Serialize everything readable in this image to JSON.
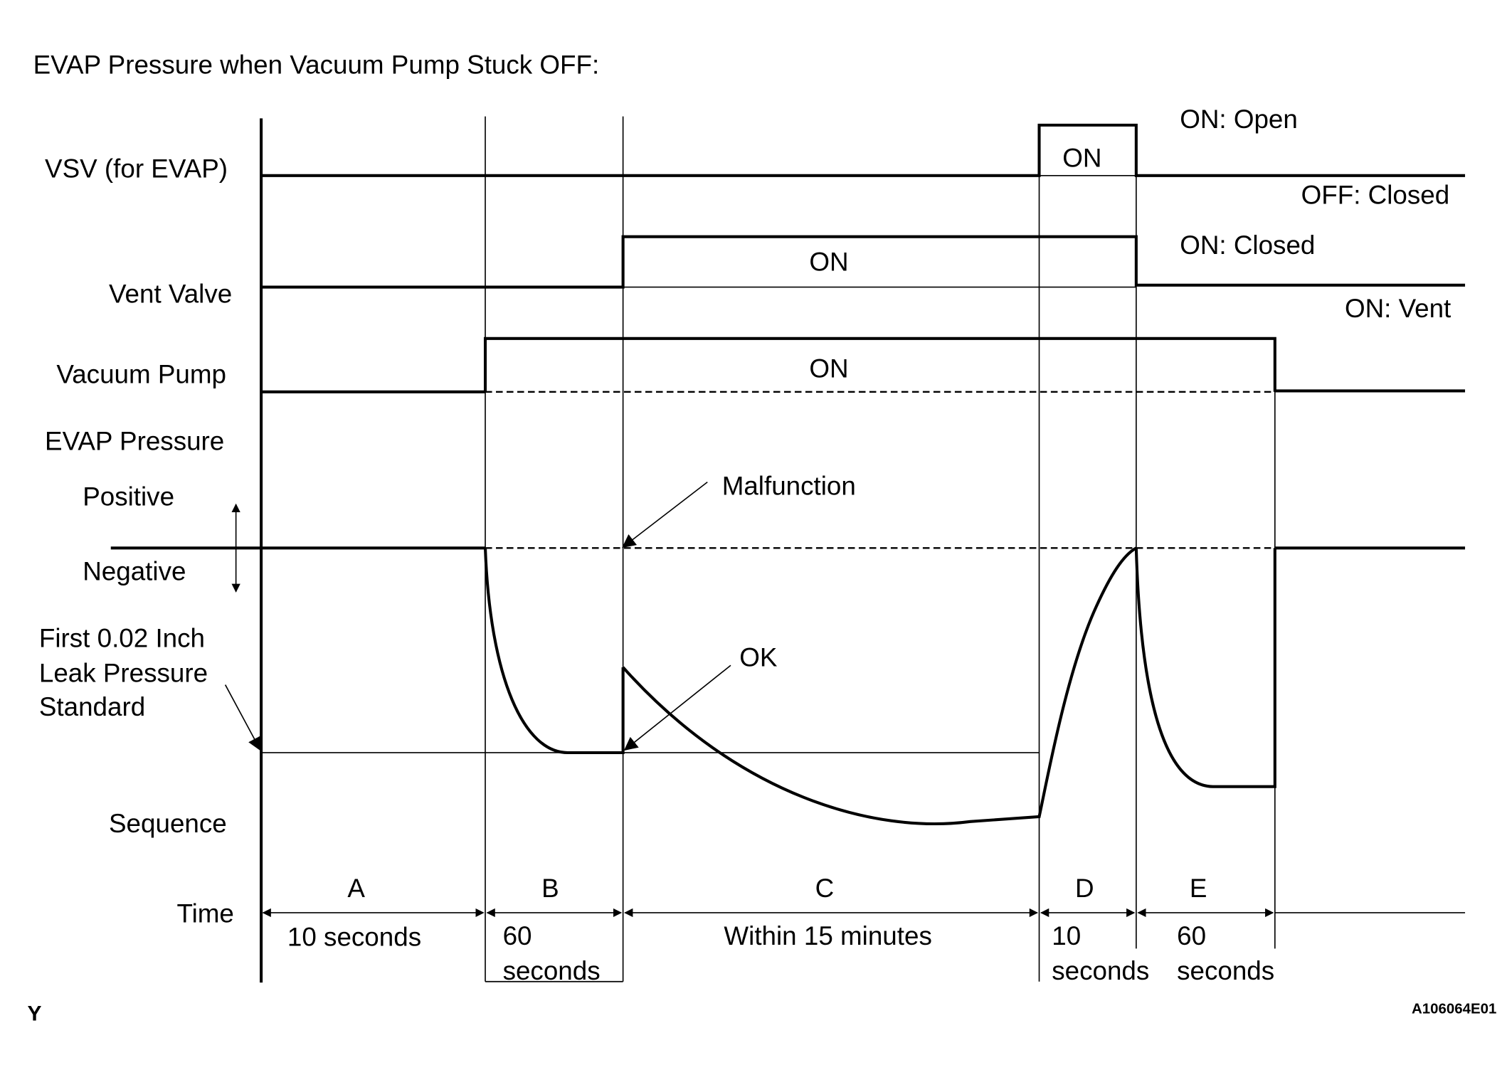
{
  "title": "EVAP Pressure when Vacuum Pump Stuck OFF:",
  "row_labels": {
    "vsv": "VSV (for EVAP)",
    "vent_valve": "Vent Valve",
    "vacuum_pump": "Vacuum Pump",
    "evap_pressure": "EVAP Pressure",
    "positive": "Positive",
    "negative": "Negative",
    "leak_standard_line1": "First 0.02 Inch",
    "leak_standard_line2": "Leak Pressure",
    "leak_standard_line3": "Standard",
    "sequence": "Sequence",
    "time": "Time"
  },
  "state_labels": {
    "vsv_on": "ON",
    "vsv_on_meaning": "ON: Open",
    "vsv_off_meaning": "OFF: Closed",
    "vent_on": "ON",
    "vent_on_closed": "ON: Closed",
    "vent_on_vent": "ON: Vent",
    "pump_on": "ON"
  },
  "annotations": {
    "malfunction": "Malfunction",
    "ok": "OK"
  },
  "sequence": {
    "a": "A",
    "b": "B",
    "c": "C",
    "d": "D",
    "e": "E"
  },
  "durations": {
    "a": "10 seconds",
    "b_line1": "60",
    "b_line2": "seconds",
    "c": "Within 15 minutes",
    "d_line1": "10",
    "d_line2": "seconds",
    "e_line1": "60",
    "e_line2": "seconds"
  },
  "footer": {
    "corner_mark": "Y",
    "figure_id": "A106064E01"
  }
}
